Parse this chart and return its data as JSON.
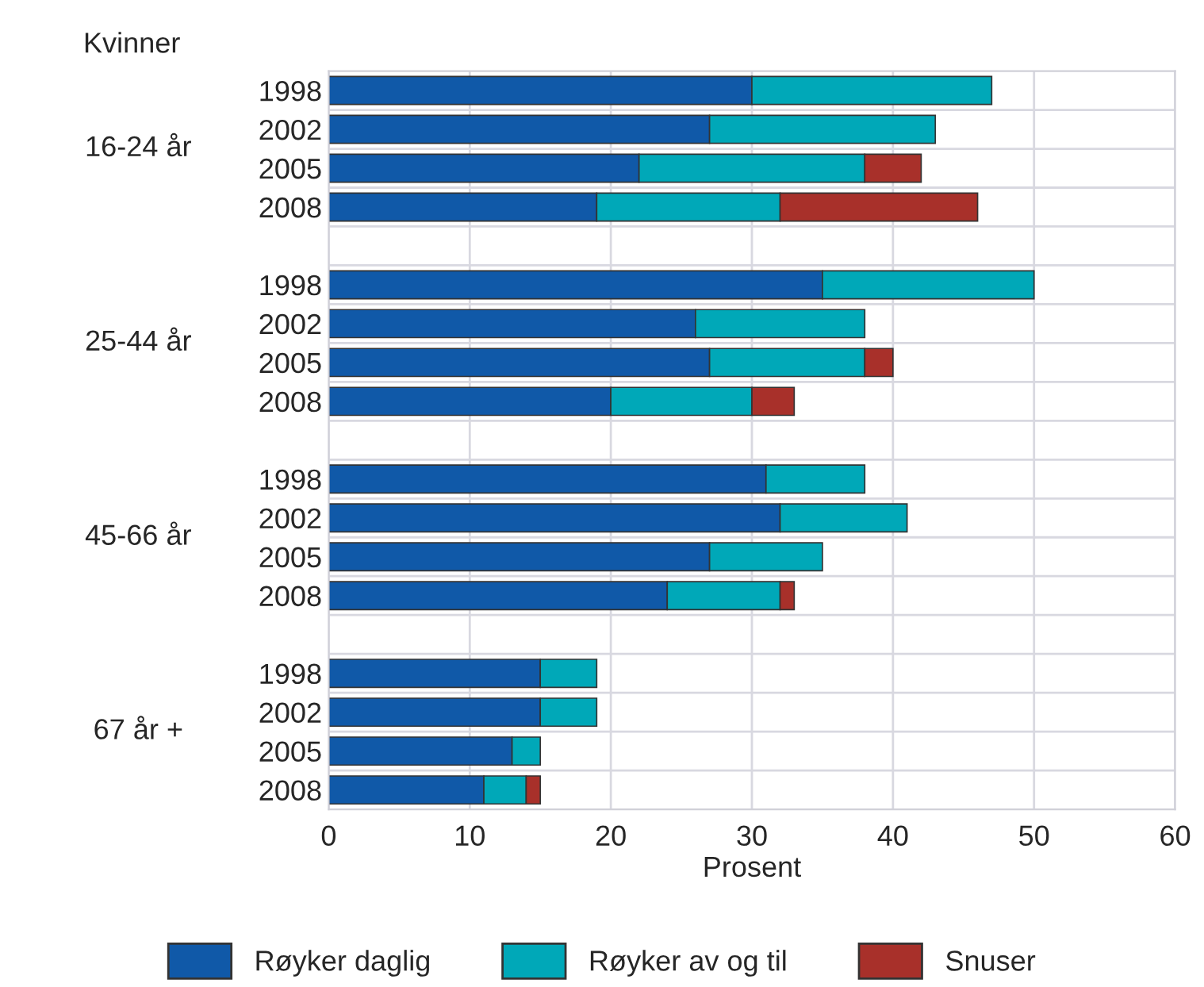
{
  "chart_data": {
    "type": "bar",
    "orientation": "horizontal",
    "stacked": true,
    "xlabel": "Prosent",
    "categories": [
      "1998",
      "2002",
      "2005",
      "2008",
      null,
      "1998",
      "2002",
      "2005",
      "2008",
      null,
      "1998",
      "2002",
      "2005",
      "2008",
      null,
      "1998",
      "2002",
      "2005",
      "2008"
    ],
    "series": [
      {
        "name": "Røyker daglig",
        "color": "#1059a8",
        "values": [
          30,
          27,
          22,
          19,
          null,
          35,
          26,
          27,
          20,
          null,
          31,
          32,
          27,
          24,
          null,
          15,
          15,
          13,
          11
        ]
      },
      {
        "name": "Røyker av og til",
        "color": "#00a8b8",
        "values": [
          17,
          16,
          16,
          13,
          null,
          15,
          12,
          11,
          10,
          null,
          7,
          9,
          8,
          8,
          null,
          4,
          4,
          2,
          3
        ]
      },
      {
        "name": "Snuser",
        "color": "#a8302a",
        "values": [
          null,
          null,
          4,
          14,
          null,
          null,
          null,
          2,
          3,
          null,
          null,
          null,
          null,
          1,
          null,
          null,
          null,
          null,
          1
        ]
      }
    ],
    "annotations": [
      "Kvinner",
      "16-24 år",
      "25-44 år",
      "45-66 år",
      "67 år +"
    ],
    "xlim": [
      0,
      60
    ],
    "xticks": [
      0,
      10,
      20,
      30,
      40,
      50,
      60
    ],
    "grid": true,
    "legend": "bottom"
  }
}
